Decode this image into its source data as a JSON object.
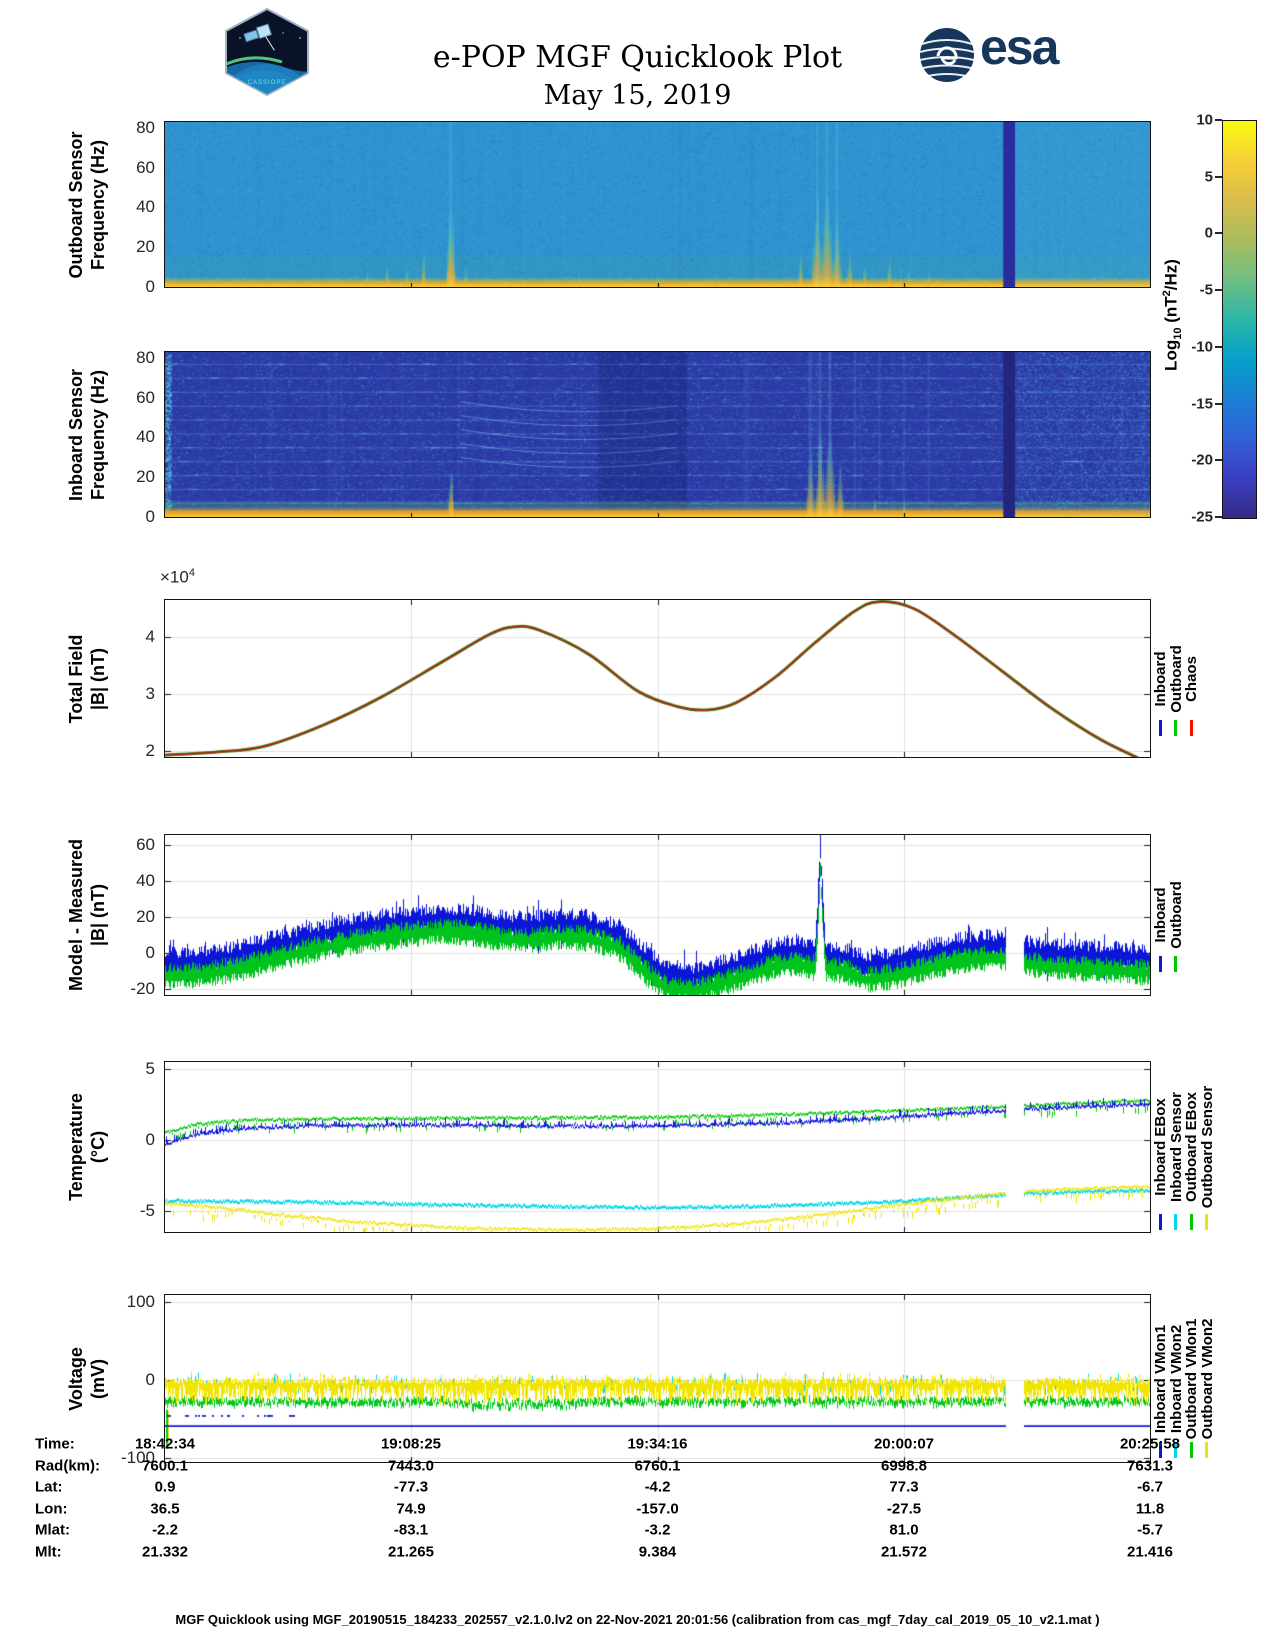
{
  "header": {
    "title": "e-POP MGF Quicklook Plot",
    "date": "May 15, 2019",
    "mission_patch_text": "CASSIOPE",
    "esa_text": "esa"
  },
  "colorbar": {
    "label_parts": {
      "p1": "Log",
      "sub": "10",
      "p2": " (nT",
      "sup": "2",
      "p3": "/Hz)"
    },
    "ticks": [
      10,
      5,
      0,
      -5,
      -10,
      -15,
      -20,
      -25
    ],
    "range": [
      -25,
      10
    ],
    "gradient_bottom_to_top": [
      "#352a87",
      "#3a3fc1",
      "#3160d8",
      "#1b7fd4",
      "#06a0ca",
      "#2cb6a8",
      "#6ebe82",
      "#aabd5e",
      "#d9bd4a",
      "#f7cf36",
      "#f9fb0e"
    ]
  },
  "panels": [
    {
      "ylabel": [
        "Outboard Sensor",
        "Frequency (Hz)"
      ],
      "yticks": [
        0,
        20,
        40,
        60,
        80
      ]
    },
    {
      "ylabel": [
        "Inboard Sensor",
        "Frequency (Hz)"
      ],
      "yticks": [
        0,
        20,
        40,
        60,
        80
      ]
    },
    {
      "ylabel": [
        "Total Field",
        "|B| (nT)"
      ],
      "yticks": [
        2,
        3,
        4
      ],
      "exp_base": "×10",
      "exp_power": "4",
      "legend": [
        {
          "label": "Inboard",
          "color": "#1414e0"
        },
        {
          "label": "Outboard",
          "color": "#00c800"
        },
        {
          "label": "Chaos",
          "color": "#f01400"
        }
      ]
    },
    {
      "ylabel": [
        "Model - Measured",
        "|B| (nT)"
      ],
      "yticks": [
        -20,
        0,
        20,
        40,
        60
      ],
      "legend": [
        {
          "label": "Inboard",
          "color": "#1414e0"
        },
        {
          "label": "Outboard",
          "color": "#00c800"
        }
      ]
    },
    {
      "ylabel": [
        "Temperature",
        "(°C)"
      ],
      "yticks": [
        -5,
        0,
        5
      ],
      "legend": [
        {
          "label": "Inboard EBox",
          "color": "#1414e0"
        },
        {
          "label": "Inboard Sensor",
          "color": "#00d8e8"
        },
        {
          "label": "Outboard EBox",
          "color": "#00c800"
        },
        {
          "label": "Outboard Sensor",
          "color": "#f0e400"
        }
      ]
    },
    {
      "ylabel": [
        "Voltage",
        "(mV)"
      ],
      "yticks": [
        -100,
        0,
        100
      ],
      "legend": [
        {
          "label": "Inboard VMon1",
          "color": "#1414e0"
        },
        {
          "label": "Inboard VMon2",
          "color": "#00d8e8"
        },
        {
          "label": "Outboard VMon1",
          "color": "#00c800"
        },
        {
          "label": "Outboard VMon2",
          "color": "#f0e400"
        }
      ]
    }
  ],
  "chart_data": [
    {
      "panel": "outboard-spectrogram",
      "type": "heatmap",
      "ylabel": "Frequency (Hz)",
      "ylim": [
        0,
        83
      ],
      "value_label": "Log10 (nT^2/Hz)",
      "value_range": [
        -25,
        10
      ],
      "base_color": "#2f93cf",
      "features": {
        "bottom_band_top_hz": 5,
        "bursts_xfrac_tophz": [
          [
            0.205,
            10
          ],
          [
            0.225,
            16
          ],
          [
            0.245,
            12
          ],
          [
            0.262,
            20
          ],
          [
            0.29,
            40
          ],
          [
            0.305,
            14
          ],
          [
            0.42,
            7
          ],
          [
            0.5,
            6
          ],
          [
            0.56,
            5
          ],
          [
            0.645,
            18
          ],
          [
            0.662,
            46
          ],
          [
            0.672,
            52
          ],
          [
            0.682,
            38
          ],
          [
            0.695,
            22
          ],
          [
            0.71,
            14
          ],
          [
            0.735,
            18
          ],
          [
            0.755,
            10
          ],
          [
            0.775,
            8
          ]
        ],
        "data_gap_x": [
          0.851,
          0.863
        ]
      }
    },
    {
      "panel": "inboard-spectrogram",
      "type": "heatmap",
      "ylabel": "Frequency (Hz)",
      "ylim": [
        0,
        83
      ],
      "value_label": "Log10 (nT^2/Hz)",
      "value_range": [
        -25,
        10
      ],
      "base_color": "#2c3ba6",
      "features": {
        "horizontal_interference_lines_hz": [
          7,
          14,
          21,
          28,
          35,
          42,
          49,
          56,
          63,
          70,
          77
        ],
        "bursts_xfrac_tophz": [
          [
            0.29,
            26
          ],
          [
            0.655,
            34
          ],
          [
            0.665,
            42
          ],
          [
            0.675,
            45
          ],
          [
            0.685,
            30
          ],
          [
            0.72,
            12
          ],
          [
            0.75,
            10
          ]
        ],
        "descending_arcs_x": [
          0.3,
          0.52
        ],
        "descending_arcs_hz": [
          30,
          58
        ],
        "dark_band_x": [
          0.44,
          0.53
        ],
        "bright_left_edge_x": [
          0.0,
          0.006
        ],
        "data_gap_x": [
          0.851,
          0.863
        ]
      }
    },
    {
      "panel": "total-field",
      "type": "line",
      "ylim_1e4": [
        1.9,
        4.65
      ],
      "yticks_1e4": [
        2,
        3,
        4
      ],
      "y_exponent": "x10^4",
      "series": [
        "Inboard",
        "Outboard",
        "Chaos"
      ],
      "note": "three curves overlap; red Chaos on top",
      "points_frac_value1e4": [
        [
          0,
          1.93
        ],
        [
          0.05,
          1.98
        ],
        [
          0.1,
          2.08
        ],
        [
          0.16,
          2.45
        ],
        [
          0.22,
          2.95
        ],
        [
          0.28,
          3.55
        ],
        [
          0.33,
          4.05
        ],
        [
          0.355,
          4.18
        ],
        [
          0.38,
          4.12
        ],
        [
          0.43,
          3.7
        ],
        [
          0.48,
          3.05
        ],
        [
          0.52,
          2.78
        ],
        [
          0.55,
          2.72
        ],
        [
          0.58,
          2.85
        ],
        [
          0.62,
          3.3
        ],
        [
          0.66,
          3.9
        ],
        [
          0.7,
          4.45
        ],
        [
          0.725,
          4.62
        ],
        [
          0.76,
          4.5
        ],
        [
          0.8,
          4.05
        ],
        [
          0.85,
          3.4
        ],
        [
          0.9,
          2.75
        ],
        [
          0.95,
          2.2
        ],
        [
          1.0,
          1.78
        ]
      ]
    },
    {
      "panel": "model-measured",
      "type": "noisy-line",
      "ylim": [
        -23,
        65
      ],
      "noise_halfwidth_nT": 7,
      "inboard_mean_points": [
        [
          0,
          -6
        ],
        [
          0.04,
          -5
        ],
        [
          0.08,
          -1
        ],
        [
          0.12,
          5
        ],
        [
          0.16,
          10
        ],
        [
          0.2,
          14
        ],
        [
          0.24,
          17
        ],
        [
          0.28,
          19
        ],
        [
          0.31,
          18
        ],
        [
          0.34,
          15
        ],
        [
          0.37,
          14
        ],
        [
          0.4,
          16
        ],
        [
          0.43,
          15
        ],
        [
          0.46,
          10
        ],
        [
          0.49,
          -5
        ],
        [
          0.51,
          -13
        ],
        [
          0.54,
          -14
        ],
        [
          0.57,
          -9
        ],
        [
          0.6,
          -4
        ],
        [
          0.62,
          0
        ],
        [
          0.64,
          1
        ],
        [
          0.655,
          -1
        ],
        [
          0.69,
          -3
        ],
        [
          0.71,
          -8
        ],
        [
          0.74,
          -6
        ],
        [
          0.77,
          -2
        ],
        [
          0.8,
          2
        ],
        [
          0.83,
          4
        ],
        [
          0.85,
          4
        ],
        [
          0.872,
          1
        ],
        [
          0.9,
          -1
        ],
        [
          0.94,
          -2
        ],
        [
          1.0,
          -4
        ]
      ],
      "outboard_offset": -7,
      "spike": {
        "x": 0.665,
        "halfwidth": 0.006,
        "peak_inboard": 62,
        "peak_outboard": 55
      },
      "data_gap_x": [
        0.853,
        0.872
      ]
    },
    {
      "panel": "temperature",
      "type": "noisy-line",
      "ylim": [
        -6.4,
        5.4
      ],
      "series": [
        {
          "name": "Inboard EBox",
          "color": "#1414e0",
          "points": [
            [
              0,
              -0.3
            ],
            [
              0.03,
              0.4
            ],
            [
              0.08,
              0.8
            ],
            [
              0.15,
              1.0
            ],
            [
              0.25,
              1.05
            ],
            [
              0.35,
              1.0
            ],
            [
              0.45,
              0.95
            ],
            [
              0.55,
              1.05
            ],
            [
              0.65,
              1.25
            ],
            [
              0.72,
              1.5
            ],
            [
              0.8,
              1.85
            ],
            [
              0.88,
              2.2
            ],
            [
              0.95,
              2.4
            ],
            [
              1,
              2.5
            ]
          ]
        },
        {
          "name": "Inboard Sensor",
          "color": "#00d8e8",
          "points": [
            [
              0,
              -4.3
            ],
            [
              0.1,
              -4.35
            ],
            [
              0.2,
              -4.45
            ],
            [
              0.3,
              -4.6
            ],
            [
              0.4,
              -4.7
            ],
            [
              0.5,
              -4.75
            ],
            [
              0.58,
              -4.7
            ],
            [
              0.66,
              -4.55
            ],
            [
              0.74,
              -4.35
            ],
            [
              0.82,
              -4.0
            ],
            [
              0.9,
              -3.7
            ],
            [
              1,
              -3.55
            ]
          ]
        },
        {
          "name": "Outboard EBox",
          "color": "#00c800",
          "points": [
            [
              0,
              0.5
            ],
            [
              0.03,
              1.1
            ],
            [
              0.08,
              1.4
            ],
            [
              0.2,
              1.5
            ],
            [
              0.35,
              1.55
            ],
            [
              0.5,
              1.6
            ],
            [
              0.6,
              1.75
            ],
            [
              0.7,
              1.95
            ],
            [
              0.8,
              2.2
            ],
            [
              0.9,
              2.5
            ],
            [
              1,
              2.8
            ]
          ]
        },
        {
          "name": "Outboard Sensor",
          "color": "#f0e400",
          "points": [
            [
              0,
              -4.5
            ],
            [
              0.06,
              -4.8
            ],
            [
              0.12,
              -5.3
            ],
            [
              0.2,
              -5.8
            ],
            [
              0.3,
              -6.2
            ],
            [
              0.4,
              -6.35
            ],
            [
              0.5,
              -6.25
            ],
            [
              0.58,
              -5.9
            ],
            [
              0.65,
              -5.4
            ],
            [
              0.72,
              -4.8
            ],
            [
              0.8,
              -4.1
            ],
            [
              0.88,
              -3.6
            ],
            [
              0.95,
              -3.35
            ],
            [
              1,
              -3.3
            ]
          ]
        }
      ],
      "data_gap_x": [
        0.853,
        0.872
      ]
    },
    {
      "panel": "voltage",
      "type": "noisy-line",
      "ylim": [
        -105,
        109
      ],
      "series": [
        {
          "name": "Inboard VMon1",
          "color": "#1414e0",
          "style": "flat-line",
          "level_mV": -58,
          "dash_level_mV": -45,
          "dash_region_x": [
            0,
            0.13
          ]
        },
        {
          "name": "Inboard VMon2",
          "color": "#00d8e8",
          "style": "sparse-spikes",
          "center_mV": -5,
          "spread_mV": 10
        },
        {
          "name": "Outboard VMon1",
          "color": "#00c800",
          "style": "noisy-band",
          "center_mV": -28,
          "spread_mV": 7
        },
        {
          "name": "Outboard VMon2",
          "color": "#f0e400",
          "style": "noisy-band",
          "center_mV": -8,
          "spread_mV": 14
        }
      ],
      "left_edge_spike": {
        "x": 0.002,
        "range_mV": [
          -88,
          -38
        ]
      },
      "data_gap_x": [
        0.853,
        0.872
      ]
    }
  ],
  "table": {
    "rows": [
      {
        "label": "Time:",
        "values": [
          "18:42:34",
          "19:08:25",
          "19:34:16",
          "20:00:07",
          "20:25:58"
        ]
      },
      {
        "label": "Rad(km):",
        "values": [
          "7600.1",
          "7443.0",
          "6760.1",
          "6998.8",
          "7631.3"
        ]
      },
      {
        "label": "Lat:",
        "values": [
          "0.9",
          "-77.3",
          "-4.2",
          "77.3",
          "-6.7"
        ]
      },
      {
        "label": "Lon:",
        "values": [
          "36.5",
          "74.9",
          "-157.0",
          "-27.5",
          "11.8"
        ]
      },
      {
        "label": "Mlat:",
        "values": [
          "-2.2",
          "-83.1",
          "-3.2",
          "81.0",
          "-5.7"
        ]
      },
      {
        "label": "Mlt:",
        "values": [
          "21.332",
          "21.265",
          "9.384",
          "21.572",
          "21.416"
        ]
      }
    ]
  },
  "footer": {
    "text": "MGF Quicklook using MGF_20190515_184233_202557_v2.1.0.lv2 on 22-Nov-2021 20:01:56 (calibration from cas_mgf_7day_cal_2019_05_10_v2.1.mat )"
  }
}
